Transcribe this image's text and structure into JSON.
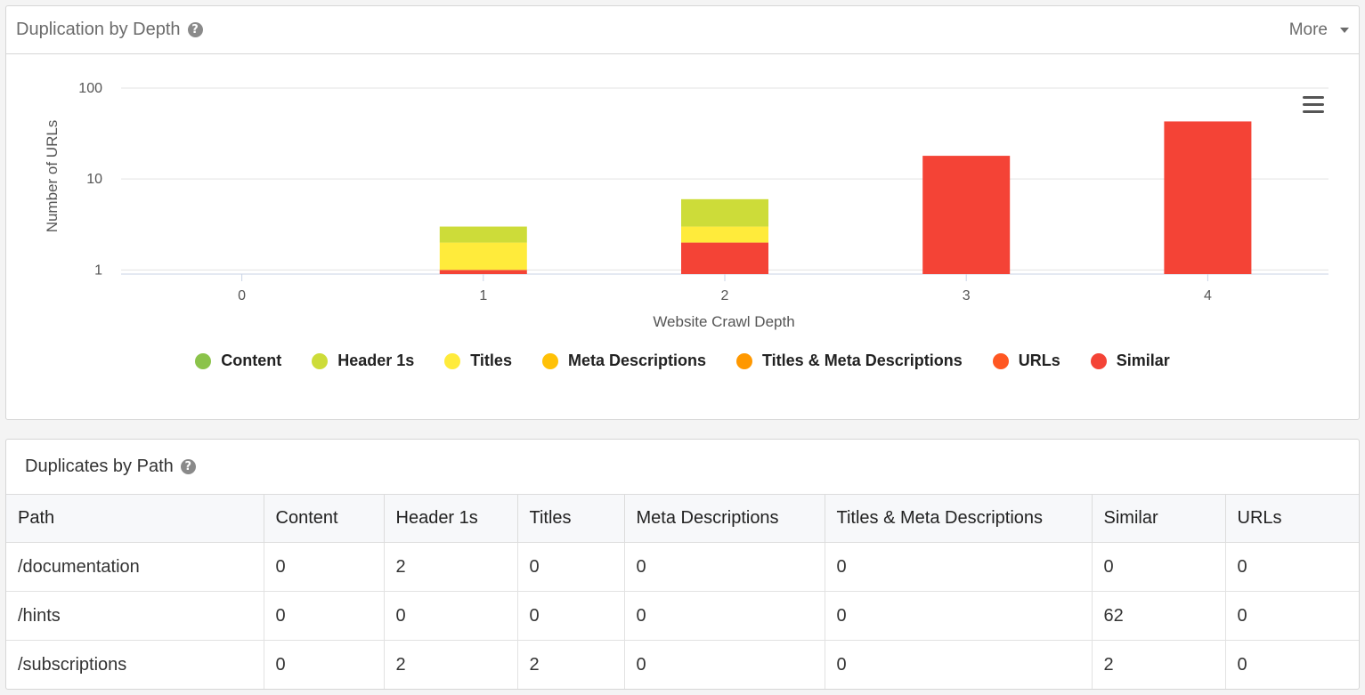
{
  "chart_panel": {
    "title": "Duplication by Depth",
    "help_icon": "?",
    "more_label": "More"
  },
  "chart_data": {
    "type": "bar",
    "stacked": true,
    "yscale": "log",
    "xlabel": "Website Crawl Depth",
    "ylabel": "Number of URLs",
    "categories": [
      "0",
      "1",
      "2",
      "3",
      "4"
    ],
    "yticks": [
      "1",
      "10",
      "100"
    ],
    "ylim": [
      0.9,
      100
    ],
    "grid": true,
    "legend_position": "bottom",
    "series": [
      {
        "name": "Content",
        "color": "#8bc34a",
        "values": [
          0,
          0,
          0,
          0,
          0
        ]
      },
      {
        "name": "Header 1s",
        "color": "#cddc39",
        "values": [
          0,
          1,
          3,
          0,
          0
        ]
      },
      {
        "name": "Titles",
        "color": "#ffeb3b",
        "values": [
          0,
          1,
          1,
          0,
          0
        ]
      },
      {
        "name": "Meta Descriptions",
        "color": "#ffc107",
        "values": [
          0,
          0,
          0,
          0,
          0
        ]
      },
      {
        "name": "Titles & Meta Descriptions",
        "color": "#ff9800",
        "values": [
          0,
          0,
          0,
          0,
          0
        ]
      },
      {
        "name": "URLs",
        "color": "#ff5722",
        "values": [
          0,
          0,
          0,
          0,
          0
        ]
      },
      {
        "name": "Similar",
        "color": "#f44336",
        "values": [
          0,
          1,
          2,
          18,
          43
        ]
      }
    ],
    "menu_icon": "hamburger-menu-icon"
  },
  "table_panel": {
    "title": "Duplicates by Path",
    "help_icon": "?",
    "columns": [
      "Path",
      "Content",
      "Header 1s",
      "Titles",
      "Meta Descriptions",
      "Titles & Meta Descriptions",
      "Similar",
      "URLs"
    ],
    "rows": [
      [
        "/documentation",
        "0",
        "2",
        "0",
        "0",
        "0",
        "0",
        "0"
      ],
      [
        "/hints",
        "0",
        "0",
        "0",
        "0",
        "0",
        "62",
        "0"
      ],
      [
        "/subscriptions",
        "0",
        "2",
        "2",
        "0",
        "0",
        "2",
        "0"
      ]
    ]
  }
}
